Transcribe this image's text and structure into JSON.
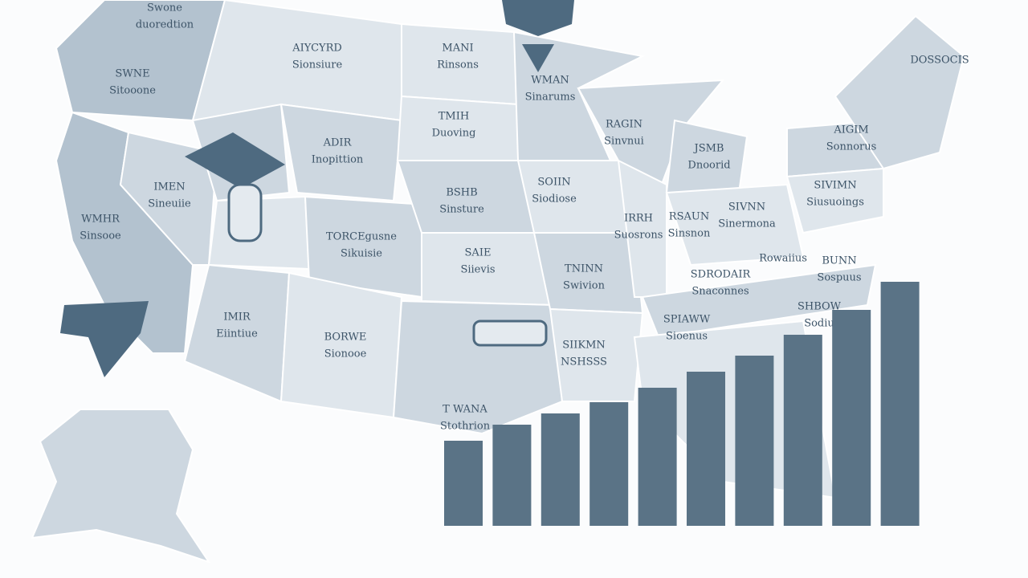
{
  "map_labels": [
    [
      "Swone",
      "duoredtion"
    ],
    [
      "AIYCYRD",
      "Sionsiure"
    ],
    [
      "SWNE",
      "Sitooone"
    ],
    [
      "MANI",
      "Rinsons"
    ],
    [
      "WMAN",
      "Sinarums"
    ],
    [
      "TMIH",
      "Duoving"
    ],
    [
      "ADIR",
      "Inopittion"
    ],
    [
      "RAGIN",
      "Sinvnui"
    ],
    [
      "JSMB",
      "Dnoorid"
    ],
    [
      "AIGIM",
      "Sonnorus"
    ],
    [
      "DOSSOCIS"
    ],
    [
      "IMEN",
      "Sineuiie"
    ],
    [
      "WMHR",
      "Sinsooe"
    ],
    [
      "BSHB",
      "Sinsture"
    ],
    [
      "SOIIN",
      "Siodiose"
    ],
    [
      "IRRH",
      "Suosrons"
    ],
    [
      "RSAUN",
      "Sinsnon"
    ],
    [
      "SIVNN",
      "Sinermona"
    ],
    [
      "SIVIMN",
      "Siusuoings"
    ],
    [
      "TORCEgusne",
      "Sikuisie"
    ],
    [
      "SAIE",
      "Siievis"
    ],
    [
      "TNINN",
      "Swivion"
    ],
    [
      "Rowaiius"
    ],
    [
      "BUNN",
      "Sospuus"
    ],
    [
      "SDRODAIR",
      "Snaconnes"
    ],
    [
      "SHBOW",
      "Sodiu"
    ],
    [
      "SPIAWW",
      "Sioenus"
    ],
    [
      "IMIR",
      "Eiintiue"
    ],
    [
      "BORWE",
      "Sionooe"
    ],
    [
      "SIIKMN",
      "NSHSSS"
    ],
    [
      "T WANA",
      "Stothrion"
    ]
  ],
  "chart_data": {
    "type": "bar",
    "values": [
      106,
      126,
      140,
      154,
      172,
      192,
      212,
      238,
      269,
      304
    ],
    "color": "#5a7386"
  }
}
